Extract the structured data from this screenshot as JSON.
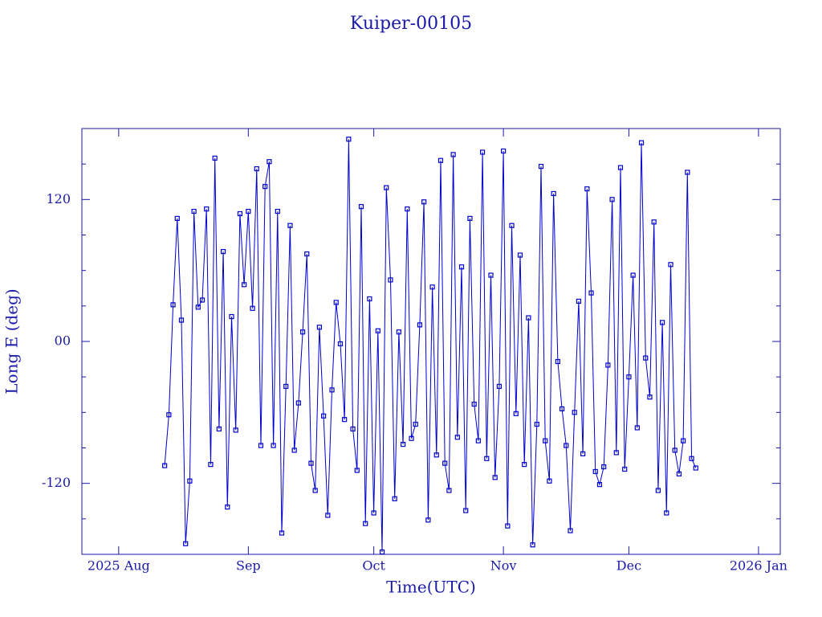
{
  "chart_data": {
    "type": "line",
    "title": "Kuiper-00105",
    "x_label": "Time(UTC)",
    "y_label": "Long E (deg)",
    "color": "#0000cc",
    "marker": "square",
    "xlim": [
      -8.8,
      158.2
    ],
    "ylim": [
      -180,
      180
    ],
    "xticks": [
      {
        "value": 0,
        "label": "2025 Aug"
      },
      {
        "value": 31,
        "label": "Sep"
      },
      {
        "value": 61,
        "label": "Oct"
      },
      {
        "value": 92,
        "label": "Nov"
      },
      {
        "value": 122,
        "label": "Dec"
      },
      {
        "value": 153,
        "label": "2026 Jan"
      }
    ],
    "yticks": [
      -120,
      {
        "value": 0,
        "label": "00"
      },
      120
    ],
    "yminor": [
      -150,
      -90,
      -60,
      -30,
      30,
      60,
      90,
      150
    ],
    "x": [
      11,
      12,
      13,
      14,
      15,
      16,
      17,
      18,
      19,
      20,
      21,
      22,
      23,
      24,
      25,
      26,
      27,
      28,
      29,
      30,
      31,
      32,
      33,
      34,
      35,
      36,
      37,
      38,
      39,
      40,
      41,
      42,
      43,
      44,
      45,
      46,
      47,
      48,
      49,
      50,
      51,
      52,
      53,
      54,
      55,
      56,
      57,
      58,
      59,
      60,
      61,
      62,
      63,
      64,
      65,
      66,
      67,
      68,
      69,
      70,
      71,
      72,
      73,
      74,
      75,
      76,
      77,
      78,
      79,
      80,
      81,
      82,
      83,
      84,
      85,
      86,
      87,
      88,
      89,
      90,
      91,
      92,
      93,
      94,
      95,
      96,
      97,
      98,
      99,
      100,
      101,
      102,
      103,
      104,
      105,
      106,
      107,
      108,
      109,
      110,
      111,
      112,
      113,
      114,
      115,
      116,
      117,
      118,
      119,
      120,
      121,
      122,
      123,
      124,
      125,
      126,
      127,
      128,
      129,
      130,
      131,
      132,
      133,
      134,
      135,
      136,
      137,
      138
    ],
    "values": [
      -105,
      -62,
      31,
      104,
      18,
      -171,
      -118,
      110,
      29,
      35,
      112,
      -104,
      155,
      -74,
      76,
      -140,
      21,
      -75,
      108,
      48,
      110,
      28,
      146,
      -88,
      131,
      152,
      -88,
      110,
      -162,
      -38,
      98,
      -92,
      -52,
      8,
      74,
      -103,
      -126,
      12,
      -63,
      -147,
      -41,
      33,
      -2,
      -66,
      171,
      -74,
      -109,
      114,
      -154,
      36,
      -145,
      9,
      -178,
      130,
      52,
      -133,
      8,
      -87,
      112,
      -82,
      -70,
      14,
      118,
      -151,
      46,
      -96,
      153,
      -103,
      -126,
      158,
      -81,
      63,
      -143,
      104,
      -53,
      -84,
      160,
      -99,
      56,
      -115,
      -38,
      161,
      -156,
      98,
      -61,
      73,
      -104,
      20,
      -172,
      -70,
      148,
      -84,
      -118,
      125,
      -17,
      -57,
      -88,
      -160,
      -60,
      34,
      -95,
      129,
      41,
      -110,
      -121,
      -106,
      -20,
      120,
      -94,
      147,
      -108,
      -30,
      56,
      -73,
      168,
      -14,
      -47,
      101,
      -126,
      16,
      -145,
      65,
      -92,
      -112,
      -84,
      143,
      -99,
      -107
    ]
  }
}
